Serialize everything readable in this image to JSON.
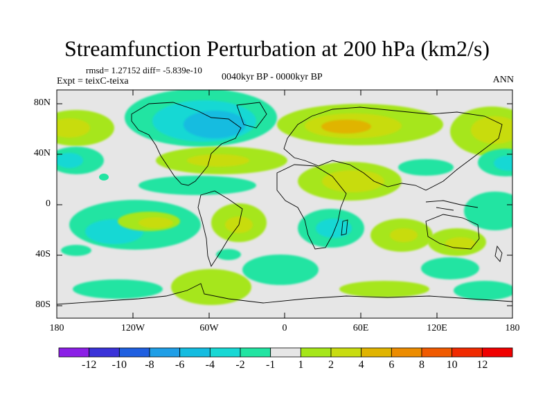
{
  "title": "Streamfunction Perturbation at 200 hPa (km2/s)",
  "stats": "rmsd= 1.27152 diff= -5.839e-10",
  "experiment": "Expt = teixC-teixa",
  "period": "0040kyr BP - 0000kyr BP",
  "season": "ANN",
  "lat_labels": [
    "80N",
    "40N",
    "0",
    "40S",
    "80S"
  ],
  "lon_labels": [
    "180",
    "120W",
    "60W",
    "0",
    "60E",
    "120E",
    "180"
  ],
  "colorbar": {
    "labels": [
      "-12",
      "-10",
      "-8",
      "-6",
      "-4",
      "-2",
      "-1",
      "1",
      "2",
      "4",
      "6",
      "8",
      "10",
      "12"
    ],
    "colors": [
      "#8b1fe6",
      "#3a32d8",
      "#1f5fe0",
      "#1f9ee6",
      "#14bce0",
      "#18d8d4",
      "#22e4a2",
      "#e6e6e6",
      "#a6e61a",
      "#c8dc10",
      "#e0b400",
      "#ec8c00",
      "#f05a00",
      "#f02a00",
      "#f00000"
    ]
  }
}
